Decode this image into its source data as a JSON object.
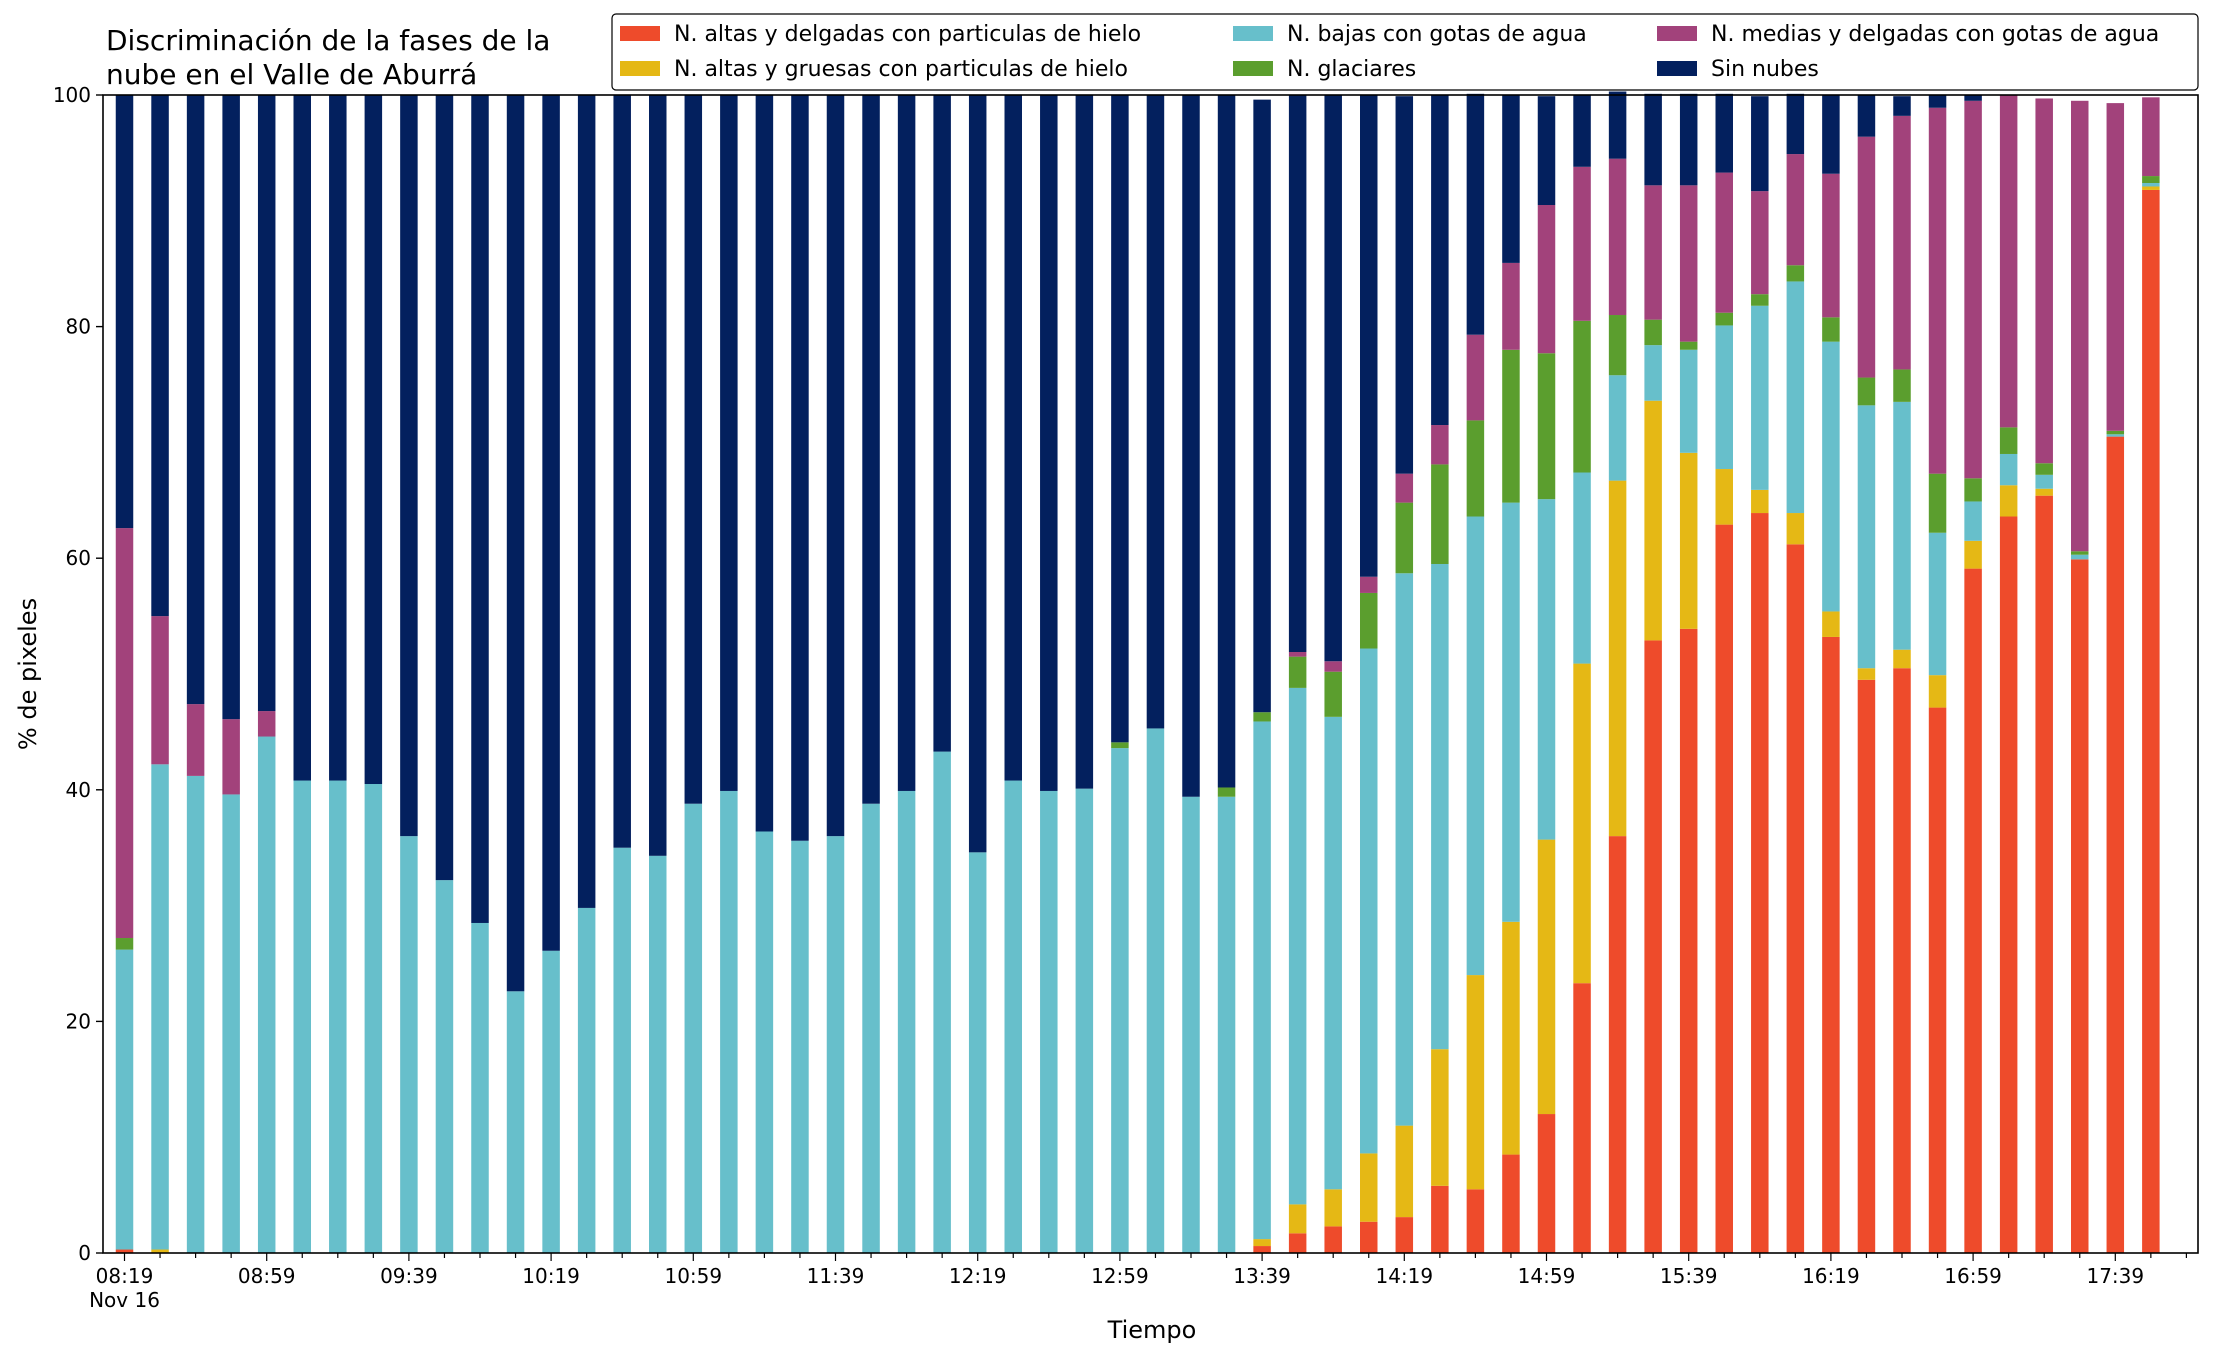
{
  "chart_data": {
    "type": "bar",
    "stacked": true,
    "title": "Discriminación de la fases de la nube en el Valle de Aburrá",
    "title_lines": [
      "Discriminación de la fases de la",
      "nube en el Valle de Aburrá"
    ],
    "xlabel": "Tiempo",
    "ylabel": "% de pixeles",
    "ylim": [
      0,
      100
    ],
    "yticks": [
      0,
      20,
      40,
      60,
      80,
      100
    ],
    "grid": false,
    "legend_position": "top-right",
    "x_tick_labels": [
      "08:19",
      "08:59",
      "09:39",
      "10:19",
      "10:59",
      "11:39",
      "12:19",
      "12:59",
      "13:39",
      "14:19",
      "14:59",
      "15:39",
      "16:19",
      "16:59",
      "17:39"
    ],
    "x_tick_sublabel": "Nov 16",
    "x_tick_every": 4,
    "categories": [
      "08:19",
      "08:29",
      "08:39",
      "08:49",
      "08:59",
      "09:09",
      "09:19",
      "09:29",
      "09:39",
      "09:49",
      "09:59",
      "10:09",
      "10:19",
      "10:29",
      "10:39",
      "10:49",
      "10:59",
      "11:09",
      "11:19",
      "11:29",
      "11:39",
      "11:49",
      "11:59",
      "12:09",
      "12:19",
      "12:29",
      "12:39",
      "12:49",
      "12:59",
      "13:09",
      "13:19",
      "13:29",
      "13:39",
      "13:49",
      "13:59",
      "14:09",
      "14:19",
      "14:29",
      "14:39",
      "14:49",
      "14:59",
      "15:09",
      "15:19",
      "15:29",
      "15:39",
      "15:49",
      "15:59",
      "16:09",
      "16:19",
      "16:29",
      "16:39",
      "16:49",
      "16:59",
      "17:09",
      "17:19",
      "17:29",
      "17:39",
      "17:49"
    ],
    "series": [
      {
        "name": "N. altas y delgadas con particulas de hielo",
        "color": "#ee4b2b",
        "values": [
          0.3,
          0,
          0,
          0,
          0,
          0,
          0,
          0,
          0,
          0,
          0,
          0,
          0,
          0,
          0,
          0,
          0,
          0,
          0,
          0,
          0,
          0,
          0,
          0,
          0,
          0,
          0,
          0,
          0,
          0,
          0,
          0,
          0.6,
          1.7,
          2.3,
          2.7,
          3.1,
          5.8,
          5.5,
          8.5,
          12.0,
          23.3,
          36.0,
          52.9,
          53.9,
          62.9,
          63.9,
          61.2,
          53.2,
          49.5,
          50.5,
          47.1,
          59.1,
          63.6,
          65.4,
          59.9,
          70.5,
          91.8
        ]
      },
      {
        "name": "N. altas y gruesas con particulas de hielo",
        "color": "#e5b815",
        "values": [
          0,
          0.3,
          0,
          0,
          0,
          0,
          0,
          0,
          0,
          0,
          0,
          0,
          0,
          0,
          0,
          0,
          0,
          0,
          0,
          0,
          0,
          0,
          0,
          0,
          0,
          0,
          0,
          0,
          0,
          0,
          0,
          0,
          0.6,
          2.5,
          3.2,
          5.9,
          7.9,
          11.8,
          18.5,
          20.1,
          23.7,
          27.6,
          30.7,
          20.7,
          15.2,
          4.8,
          2.0,
          2.7,
          2.2,
          1.0,
          1.6,
          2.8,
          2.4,
          2.7,
          0.6,
          0,
          0,
          0.3
        ]
      },
      {
        "name": "N. bajas con gotas de agua",
        "color": "#67bfcb",
        "values": [
          25.9,
          41.9,
          41.2,
          39.6,
          44.6,
          40.8,
          40.8,
          40.5,
          36.0,
          32.2,
          28.5,
          22.6,
          26.1,
          29.8,
          35.0,
          34.3,
          38.8,
          39.9,
          36.4,
          35.6,
          36.0,
          38.8,
          39.9,
          43.3,
          34.6,
          40.8,
          39.9,
          40.1,
          43.6,
          45.3,
          39.4,
          39.4,
          44.7,
          44.6,
          40.8,
          43.6,
          47.7,
          41.9,
          39.6,
          36.2,
          29.4,
          16.5,
          9.1,
          4.8,
          8.9,
          12.4,
          15.9,
          20.0,
          23.3,
          22.7,
          21.4,
          12.3,
          3.4,
          2.7,
          1.2,
          0.4,
          0.2,
          0.3
        ]
      },
      {
        "name": "N. glaciares",
        "color": "#5b9e2e",
        "values": [
          1.0,
          0,
          0,
          0,
          0,
          0,
          0,
          0,
          0,
          0,
          0,
          0,
          0,
          0,
          0,
          0,
          0,
          0,
          0,
          0,
          0,
          0,
          0,
          0,
          0,
          0,
          0,
          0,
          0.5,
          0,
          0,
          0.8,
          0.8,
          2.7,
          3.9,
          4.8,
          6.1,
          8.6,
          8.3,
          13.2,
          12.6,
          13.1,
          5.2,
          2.2,
          0.7,
          1.1,
          1.0,
          1.4,
          2.1,
          2.4,
          2.8,
          5.1,
          2.0,
          2.3,
          1.0,
          0.3,
          0.3,
          0.6
        ]
      },
      {
        "name": "N. medias y delgadas con gotas de agua",
        "color": "#a2427b",
        "values": [
          35.4,
          12.8,
          6.2,
          6.5,
          2.2,
          0,
          0,
          0,
          0,
          0,
          0,
          0,
          0,
          0,
          0,
          0,
          0,
          0,
          0,
          0,
          0,
          0,
          0,
          0,
          0,
          0,
          0,
          0,
          0,
          0,
          0,
          0,
          0,
          0.4,
          0.9,
          1.4,
          2.5,
          3.4,
          7.4,
          7.5,
          12.8,
          13.3,
          13.5,
          11.6,
          13.5,
          12.1,
          8.9,
          9.6,
          12.4,
          20.8,
          21.9,
          31.6,
          32.6,
          28.7,
          31.5,
          38.9,
          28.3,
          6.8
        ]
      },
      {
        "name": "Sin nubes",
        "color": "#03205e",
        "values": [
          37.4,
          45.0,
          52.6,
          53.9,
          53.2,
          59.2,
          59.2,
          59.5,
          64.0,
          67.8,
          71.5,
          77.4,
          73.9,
          70.2,
          65.0,
          65.7,
          61.2,
          60.1,
          63.6,
          64.4,
          64.0,
          61.2,
          60.1,
          56.7,
          65.4,
          59.2,
          60.1,
          59.9,
          55.9,
          54.7,
          60.6,
          59.8,
          52.9,
          48.1,
          48.9,
          41.6,
          32.6,
          28.5,
          20.8,
          14.5,
          9.4,
          6.2,
          5.8,
          7.9,
          7.9,
          6.8,
          8.2,
          5.2,
          6.8,
          3.6,
          1.7,
          1.1,
          0.5,
          0,
          0,
          0,
          0,
          0
        ]
      }
    ]
  }
}
